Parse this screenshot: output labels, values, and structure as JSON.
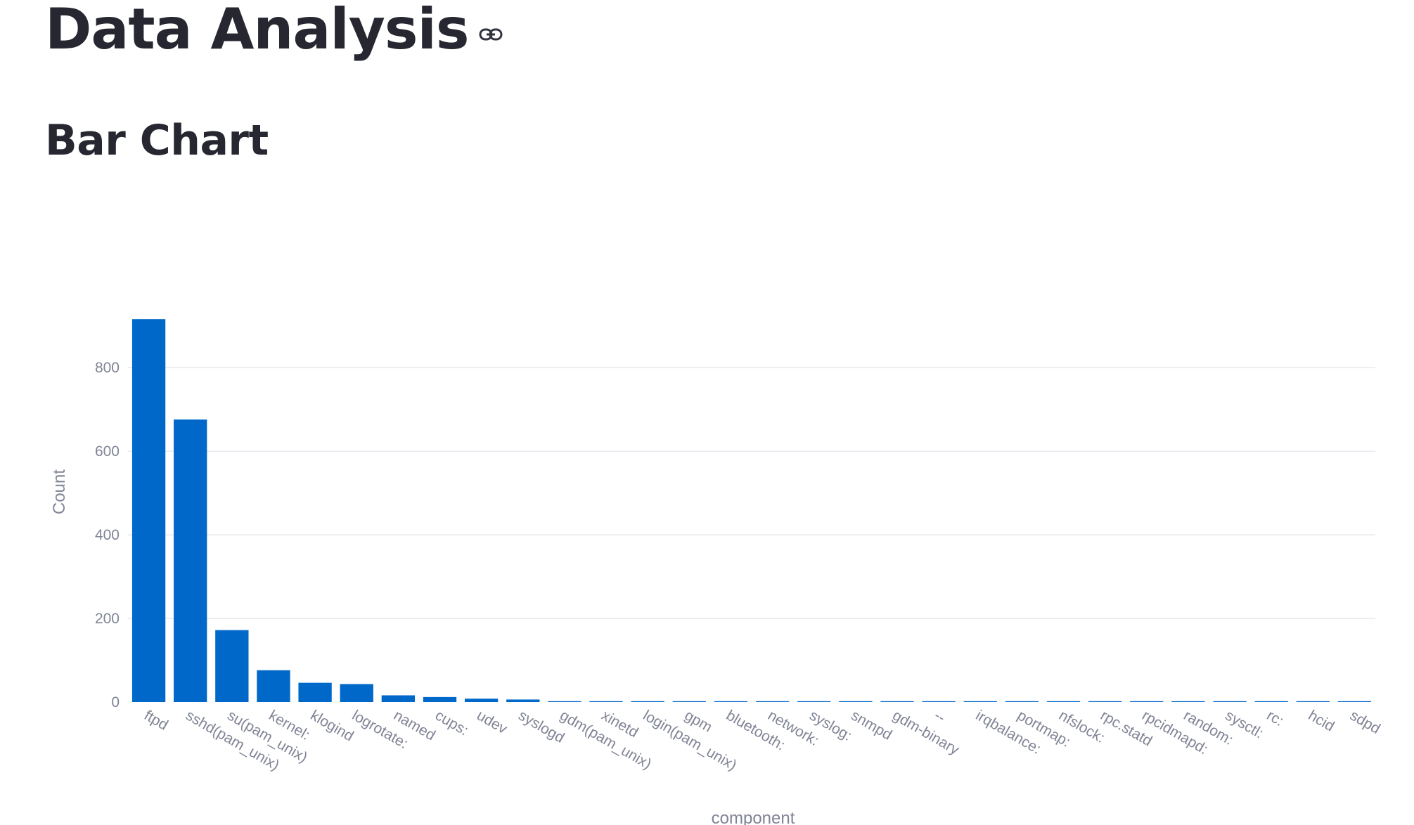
{
  "page": {
    "title": "Data Analysis",
    "section_title": "Bar Chart"
  },
  "icons": {
    "anchor": "link-icon"
  },
  "colors": {
    "bar": "#0068c9",
    "grid": "#e6e9ef",
    "axis_text": "#808495",
    "heading": "#262730"
  },
  "chart_data": {
    "type": "bar",
    "title": "",
    "xlabel": "component",
    "ylabel": "Count",
    "ylim": [
      0,
      960
    ],
    "yticks": [
      0,
      200,
      400,
      600,
      800
    ],
    "grid": true,
    "categories": [
      "ftpd",
      "sshd(pam_unix)",
      "su(pam_unix)",
      "kernel:",
      "klogind",
      "logrotate:",
      "named",
      "cups:",
      "udev",
      "syslogd",
      "gdm(pam_unix)",
      "xinetd",
      "login(pam_unix)",
      "gpm",
      "bluetooth:",
      "network:",
      "syslog:",
      "snmpd",
      "gdm-binary",
      "--",
      "irqbalance:",
      "portmap:",
      "nfslock:",
      "rpc.statd",
      "rpcidmapd:",
      "random:",
      "sysctl:",
      "rc:",
      "hcid",
      "sdpd"
    ],
    "values": [
      916,
      676,
      172,
      76,
      46,
      43,
      16,
      12,
      8,
      6,
      2,
      2,
      2,
      2,
      2,
      2,
      2,
      2,
      2,
      2,
      2,
      2,
      2,
      2,
      2,
      2,
      2,
      2,
      2,
      2
    ]
  }
}
